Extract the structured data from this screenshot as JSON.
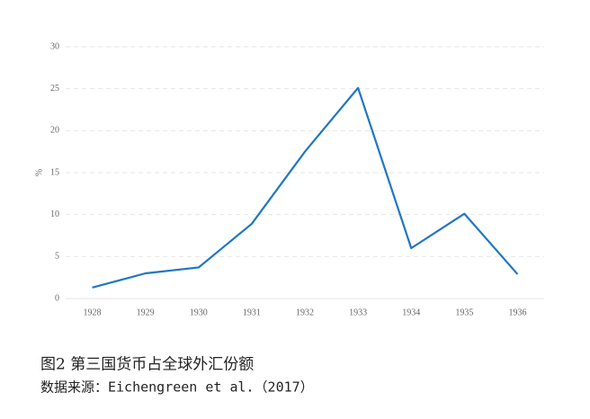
{
  "chart_data": {
    "type": "line",
    "title": "图2  第三国货币占全球外汇份额",
    "source": "数据来源：Eichengreen et al.（2017）",
    "y_label": "%",
    "categories": [
      "1928",
      "1929",
      "1930",
      "1931",
      "1932",
      "1933",
      "1934",
      "1935",
      "1936"
    ],
    "values": [
      1.3,
      3.0,
      3.7,
      8.9,
      17.5,
      25.1,
      6.0,
      10.1,
      2.9
    ],
    "color": "#1f77c4",
    "ylim": [
      0,
      30
    ],
    "yticks": [
      0,
      5,
      10,
      15,
      20,
      25,
      30
    ],
    "grid": true
  }
}
